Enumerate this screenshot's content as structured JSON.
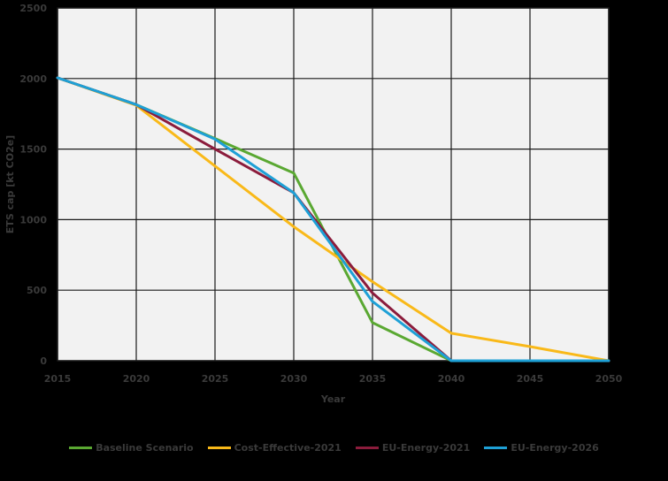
{
  "chart_data": {
    "type": "line",
    "title": "",
    "xlabel": "Year",
    "ylabel": "ETS cap [kt CO2e]",
    "x": [
      2015,
      2020,
      2025,
      2030,
      2035,
      2040,
      2045,
      2050
    ],
    "xlim": [
      2015,
      2050
    ],
    "ylim": [
      0,
      2500
    ],
    "x_ticks": [
      2015,
      2020,
      2025,
      2030,
      2035,
      2040,
      2045,
      2050
    ],
    "y_ticks": [
      0,
      500,
      1000,
      1500,
      2000,
      2500
    ],
    "grid": true,
    "legend_position": "bottom",
    "series": [
      {
        "name": "Baseline Scenario",
        "color": "#5aa832",
        "points": [
          [
            2015,
            2005
          ],
          [
            2020,
            1815
          ],
          [
            2025,
            1575
          ],
          [
            2030,
            1330
          ],
          [
            2035,
            270
          ],
          [
            2040,
            0
          ],
          [
            2045,
            0
          ],
          [
            2050,
            0
          ]
        ]
      },
      {
        "name": "Cost-Effective-2021",
        "color": "#f9b919",
        "points": [
          [
            2015,
            2005
          ],
          [
            2020,
            1810
          ],
          [
            2025,
            1380
          ],
          [
            2030,
            950
          ],
          [
            2035,
            560
          ],
          [
            2040,
            195
          ],
          [
            2045,
            100
          ],
          [
            2050,
            0
          ]
        ]
      },
      {
        "name": "EU-Energy-2021",
        "color": "#8b1c3c",
        "points": [
          [
            2015,
            2005
          ],
          [
            2020,
            1815
          ],
          [
            2025,
            1500
          ],
          [
            2030,
            1190
          ],
          [
            2035,
            480
          ],
          [
            2040,
            0
          ],
          [
            2045,
            0
          ],
          [
            2050,
            0
          ]
        ]
      },
      {
        "name": "EU-Energy-2026",
        "color": "#1ea0d6",
        "points": [
          [
            2015,
            2005
          ],
          [
            2020,
            1815
          ],
          [
            2025,
            1570
          ],
          [
            2030,
            1190
          ],
          [
            2035,
            420
          ],
          [
            2040,
            0
          ],
          [
            2045,
            0
          ],
          [
            2050,
            0
          ]
        ]
      }
    ]
  }
}
